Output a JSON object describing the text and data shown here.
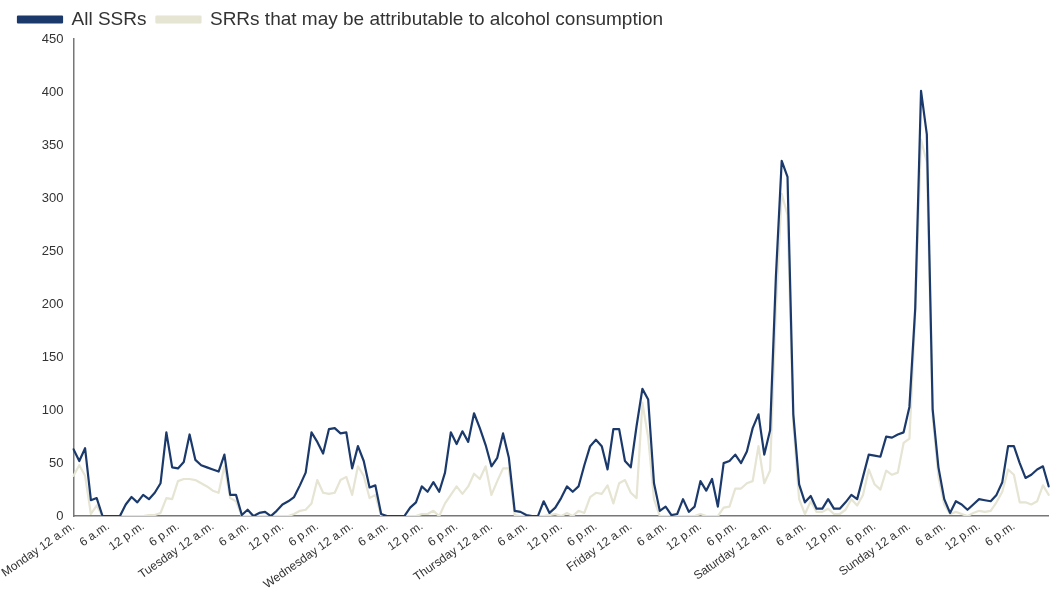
{
  "chart_data": {
    "type": "line",
    "categories": [
      "Monday 12 a.m.",
      null,
      null,
      null,
      null,
      null,
      "6 a.m.",
      null,
      null,
      null,
      null,
      null,
      "12 p.m.",
      null,
      null,
      null,
      null,
      null,
      "6 p.m.",
      null,
      null,
      null,
      null,
      null,
      "Tuesday 12 a.m.",
      null,
      null,
      null,
      null,
      null,
      "6 a.m.",
      null,
      null,
      null,
      null,
      null,
      "12 p.m.",
      null,
      null,
      null,
      null,
      null,
      "6 p.m.",
      null,
      null,
      null,
      null,
      null,
      "Wednesday 12 a.m.",
      null,
      null,
      null,
      null,
      null,
      "6 a.m.",
      null,
      null,
      null,
      null,
      null,
      "12 p.m.",
      null,
      null,
      null,
      null,
      null,
      "6 p.m.",
      null,
      null,
      null,
      null,
      null,
      "Thursday 12 a.m.",
      null,
      null,
      null,
      null,
      null,
      "6 a.m.",
      null,
      null,
      null,
      null,
      null,
      "12 p.m.",
      null,
      null,
      null,
      null,
      null,
      "6 p.m.",
      null,
      null,
      null,
      null,
      null,
      "Friday 12 a.m.",
      null,
      null,
      null,
      null,
      null,
      "6 a.m.",
      null,
      null,
      null,
      null,
      null,
      "12 p.m.",
      null,
      null,
      null,
      null,
      null,
      "6 p.m.",
      null,
      null,
      null,
      null,
      null,
      "Saturday 12 a.m.",
      null,
      null,
      null,
      null,
      null,
      "6 a.m.",
      null,
      null,
      null,
      null,
      null,
      "12 p.m.",
      null,
      null,
      null,
      null,
      null,
      "6 p.m.",
      null,
      null,
      null,
      null,
      null,
      "Sunday 12 a.m.",
      null,
      null,
      null,
      null,
      null,
      "6 a.m.",
      null,
      null,
      null,
      null,
      null,
      "12 p.m.",
      null,
      null,
      null,
      null,
      null,
      "6 p.m.",
      null,
      null,
      null,
      null,
      null,
      null
    ],
    "series": [
      {
        "name": "All SSRs",
        "color": "#1b3a6b",
        "values": [
          63,
          52,
          64,
          15,
          17,
          0,
          0,
          0,
          0,
          11,
          18,
          13,
          20,
          16,
          22,
          31,
          79,
          46,
          45,
          51,
          77,
          53,
          48,
          46,
          44,
          42,
          58,
          20,
          20,
          1,
          6,
          0,
          3,
          4,
          0,
          5,
          11,
          14,
          18,
          29,
          41,
          79,
          70,
          59,
          82,
          83,
          78,
          79,
          45,
          66,
          52,
          27,
          29,
          2,
          0,
          0,
          0,
          0,
          8,
          13,
          28,
          23,
          32,
          23,
          41,
          79,
          68,
          80,
          70,
          97,
          83,
          67,
          47,
          55,
          78,
          55,
          5,
          4,
          1,
          0,
          0,
          14,
          3,
          8,
          17,
          28,
          23,
          28,
          48,
          66,
          72,
          66,
          44,
          82,
          82,
          52,
          46,
          85,
          120,
          110,
          31,
          5,
          9,
          1,
          2,
          16,
          4,
          9,
          33,
          24,
          35,
          9,
          50,
          52,
          58,
          50,
          61,
          83,
          96,
          58,
          81,
          226,
          335,
          320,
          96,
          30,
          13,
          19,
          7,
          7,
          16,
          7,
          7,
          13,
          20,
          16,
          37,
          58,
          57,
          56,
          75,
          74,
          77,
          79,
          103,
          196,
          401,
          360,
          101,
          46,
          16,
          3,
          14,
          11,
          6,
          11,
          16,
          15,
          14,
          20,
          32,
          66,
          66,
          50,
          36,
          39,
          44,
          47,
          28
        ]
      },
      {
        "name": "SRRs that may be attributable to alcohol consumption",
        "color": "#e6e4d3",
        "values": [
          38,
          48,
          38,
          2,
          10,
          0,
          0,
          0,
          0,
          0,
          0,
          0,
          0,
          1,
          1,
          3,
          17,
          16,
          33,
          35,
          35,
          34,
          31,
          28,
          24,
          22,
          47,
          17,
          14,
          0,
          0,
          0,
          0,
          0,
          0,
          0,
          0,
          0,
          2,
          5,
          6,
          12,
          34,
          22,
          21,
          22,
          34,
          37,
          20,
          47,
          38,
          17,
          20,
          0,
          0,
          0,
          0,
          0,
          0,
          0,
          2,
          2,
          5,
          0,
          12,
          20,
          28,
          21,
          28,
          40,
          35,
          47,
          20,
          33,
          45,
          45,
          1,
          0,
          0,
          0,
          0,
          0,
          1,
          2,
          0,
          3,
          0,
          5,
          3,
          18,
          22,
          21,
          29,
          12,
          31,
          34,
          22,
          17,
          107,
          74,
          16,
          0,
          0,
          0,
          0,
          0,
          0,
          0,
          2,
          0,
          0,
          0,
          8,
          9,
          26,
          26,
          31,
          33,
          66,
          31,
          43,
          196,
          304,
          284,
          87,
          16,
          2,
          14,
          4,
          4,
          7,
          2,
          2,
          6,
          16,
          10,
          20,
          44,
          30,
          25,
          43,
          39,
          41,
          69,
          73,
          190,
          355,
          334,
          94,
          37,
          11,
          2,
          4,
          2,
          0,
          3,
          5,
          4,
          5,
          13,
          23,
          44,
          39,
          13,
          13,
          11,
          14,
          29,
          20
        ]
      }
    ],
    "ylim": [
      0,
      450
    ],
    "yticks": [
      0,
      50,
      100,
      150,
      200,
      250,
      300,
      350,
      400,
      450
    ],
    "grid": false,
    "legend": "top left",
    "marker": "none",
    "line_style": "solid"
  }
}
